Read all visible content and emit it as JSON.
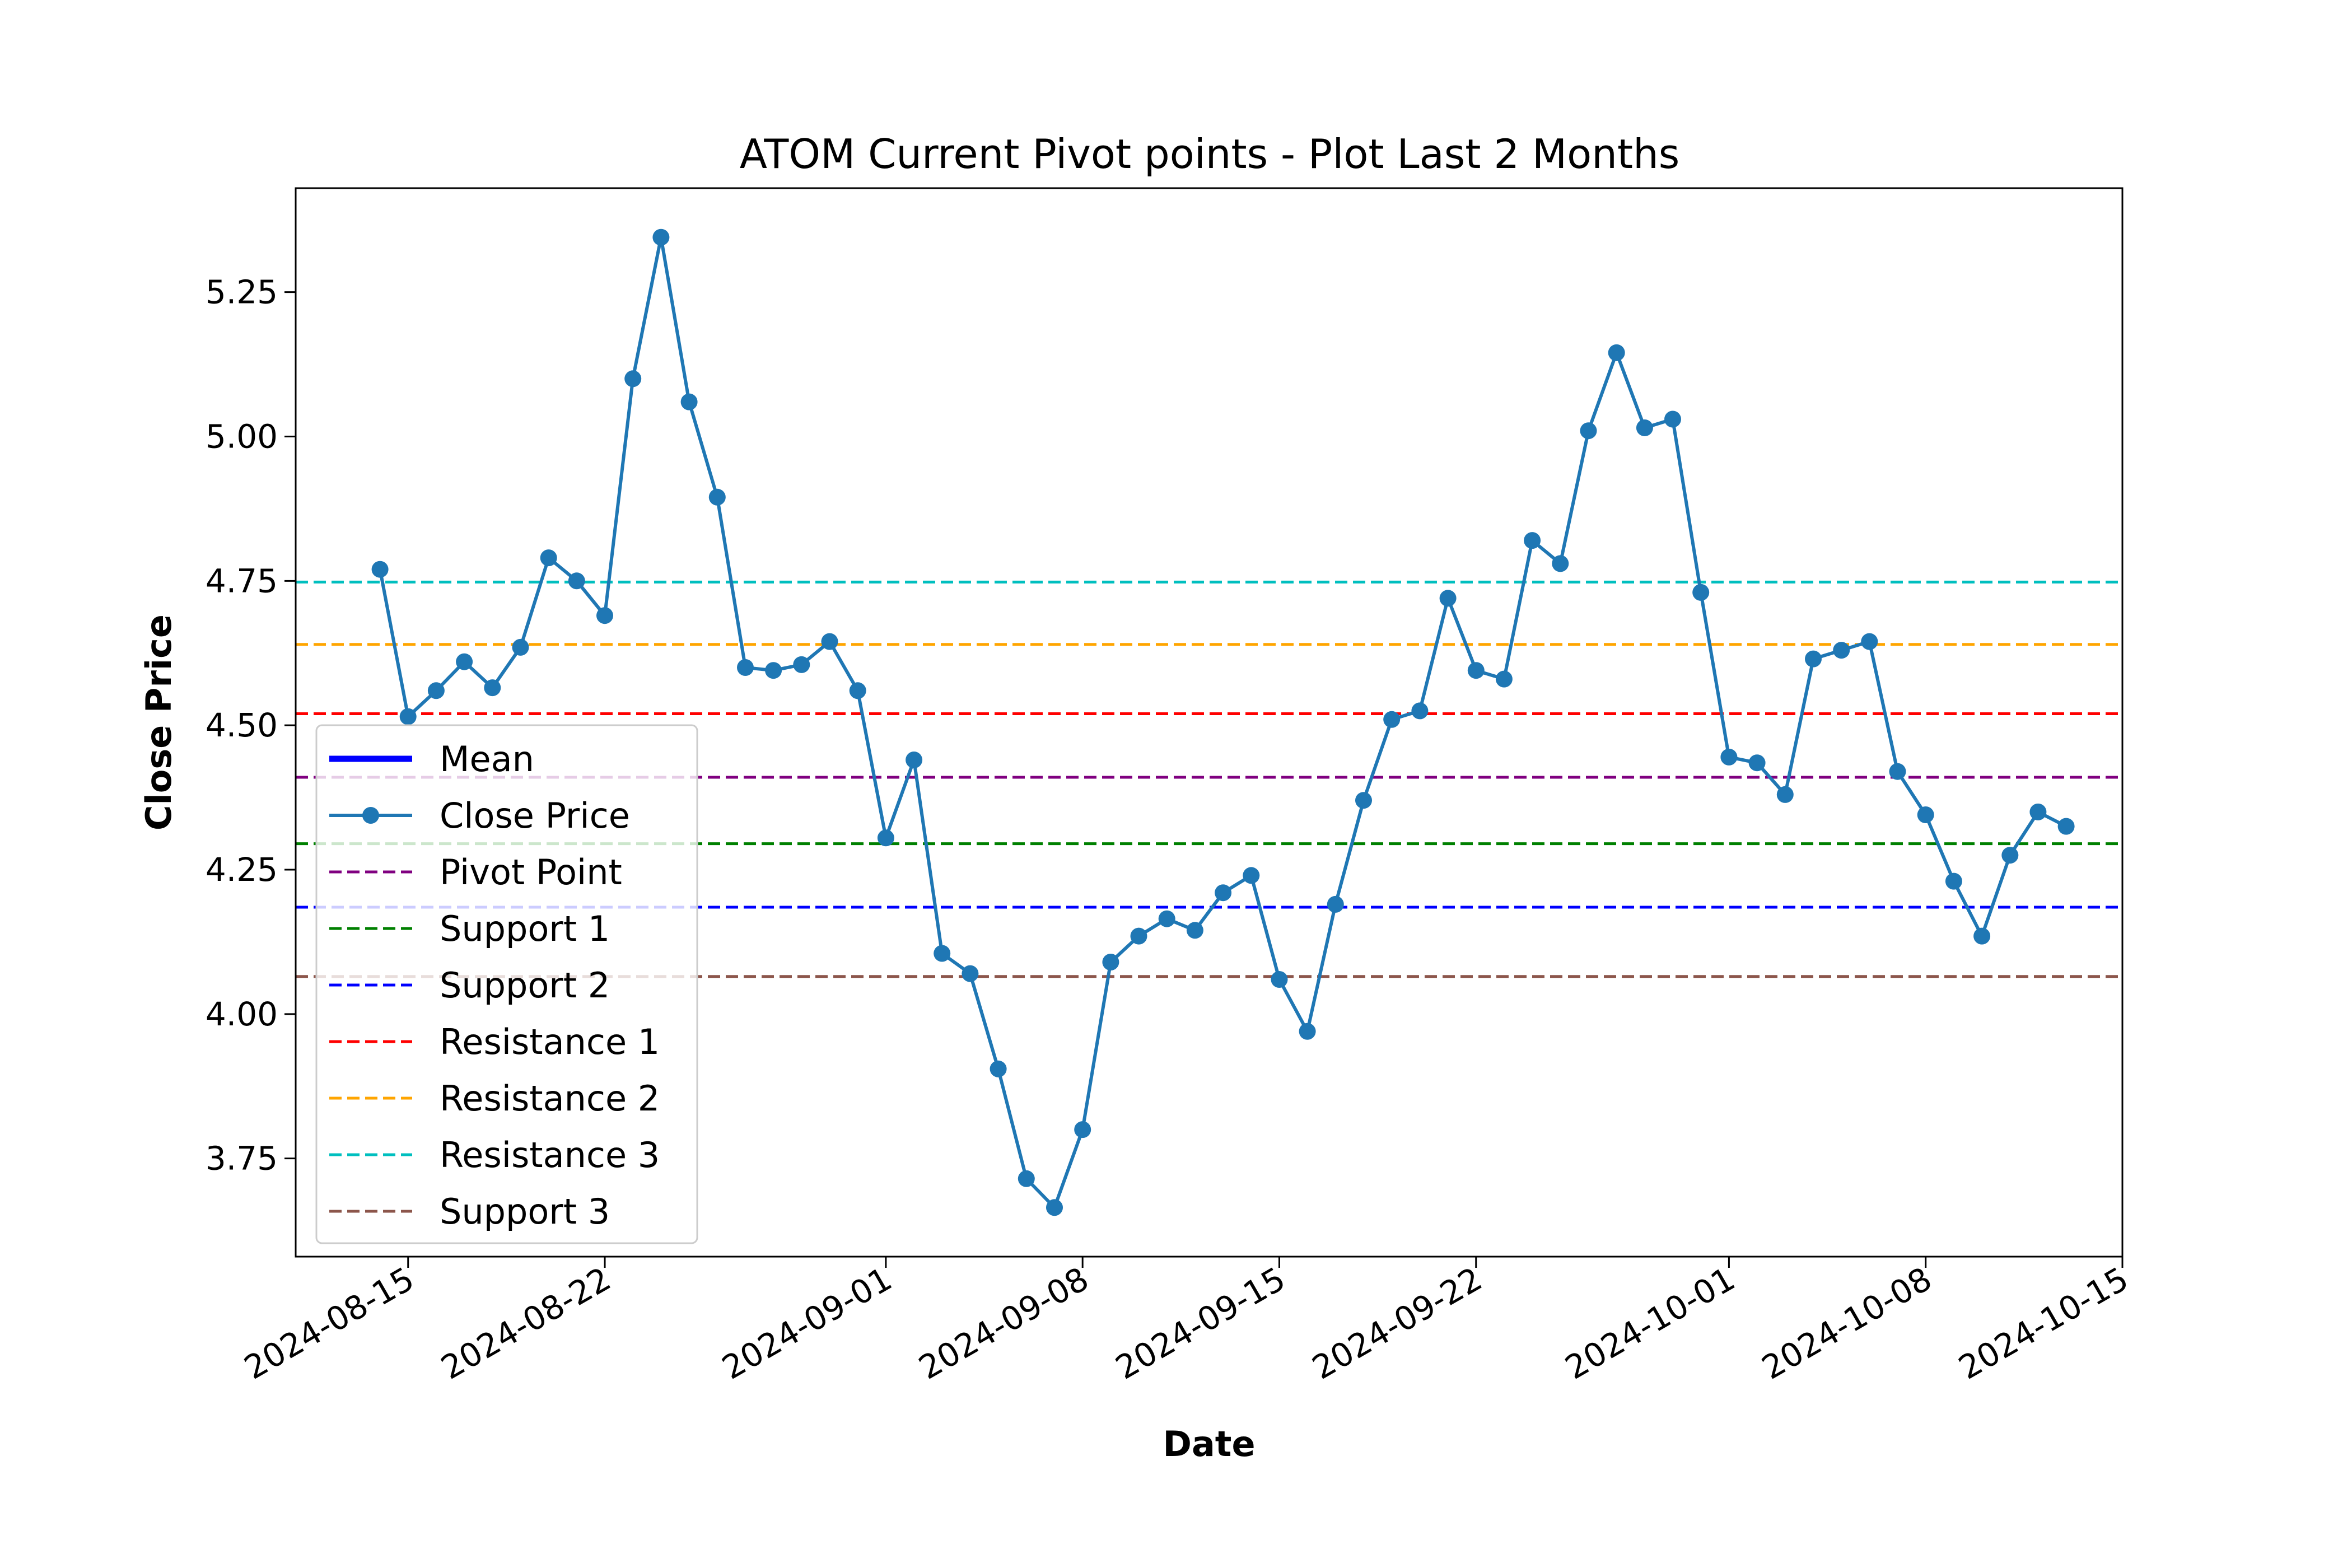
{
  "chart_data": {
    "type": "line",
    "title": "ATOM Current Pivot points - Plot Last 2 Months",
    "xlabel": "Date",
    "ylabel": "Close Price",
    "x_range": [
      "2024-08-11",
      "2024-10-15"
    ],
    "ylim": [
      3.58,
      5.43
    ],
    "yticks": [
      "3.75",
      "4.00",
      "4.25",
      "4.50",
      "4.75",
      "5.00",
      "5.25"
    ],
    "xticks": [
      "2024-08-15",
      "2024-08-22",
      "2024-09-01",
      "2024-09-08",
      "2024-09-15",
      "2024-09-22",
      "2024-10-01",
      "2024-10-08",
      "2024-10-15"
    ],
    "grid": false,
    "legend_position": "lower-left",
    "legend": [
      {
        "label": "Mean",
        "color": "#0000ff",
        "style": "solid-thick"
      },
      {
        "label": "Close Price",
        "color": "#1f77b4",
        "style": "line-marker"
      },
      {
        "label": "Pivot Point",
        "color": "#800080",
        "style": "dashed"
      },
      {
        "label": "Support 1",
        "color": "#008000",
        "style": "dashed"
      },
      {
        "label": "Support 2",
        "color": "#0000ff",
        "style": "dashed"
      },
      {
        "label": "Resistance 1",
        "color": "#ff0000",
        "style": "dashed"
      },
      {
        "label": "Resistance 2",
        "color": "#ffa500",
        "style": "dashed"
      },
      {
        "label": "Resistance 3",
        "color": "#00bfbf",
        "style": "dashed"
      },
      {
        "label": "Support 3",
        "color": "#8c564b",
        "style": "dashed"
      }
    ],
    "hlines": [
      {
        "name": "Pivot Point",
        "value": 4.41,
        "color": "#800080"
      },
      {
        "name": "Support 1",
        "value": 4.295,
        "color": "#008000"
      },
      {
        "name": "Support 2",
        "value": 4.185,
        "color": "#0000ff"
      },
      {
        "name": "Resistance 1",
        "value": 4.52,
        "color": "#ff0000"
      },
      {
        "name": "Resistance 2",
        "value": 4.64,
        "color": "#ffa500"
      },
      {
        "name": "Resistance 3",
        "value": 4.748,
        "color": "#00bfbf"
      },
      {
        "name": "Support 3",
        "value": 4.065,
        "color": "#8c564b"
      }
    ],
    "series": [
      {
        "name": "Close Price",
        "color": "#1f77b4",
        "start_date": "2024-08-14",
        "values": [
          4.77,
          4.515,
          4.56,
          4.61,
          4.565,
          4.635,
          4.79,
          4.75,
          4.69,
          5.1,
          5.345,
          5.06,
          4.895,
          4.6,
          4.595,
          4.605,
          4.645,
          4.56,
          4.305,
          4.44,
          4.105,
          4.07,
          3.905,
          3.715,
          3.665,
          3.8,
          4.09,
          4.135,
          4.165,
          4.145,
          4.21,
          4.24,
          4.06,
          3.97,
          4.19,
          4.37,
          4.51,
          4.525,
          4.72,
          4.595,
          4.58,
          4.82,
          4.78,
          5.01,
          5.145,
          5.015,
          5.03,
          4.73,
          4.445,
          4.435,
          4.38,
          4.615,
          4.63,
          4.645,
          4.42,
          4.345,
          4.23,
          4.135,
          4.275,
          4.35,
          4.325
        ]
      }
    ]
  }
}
